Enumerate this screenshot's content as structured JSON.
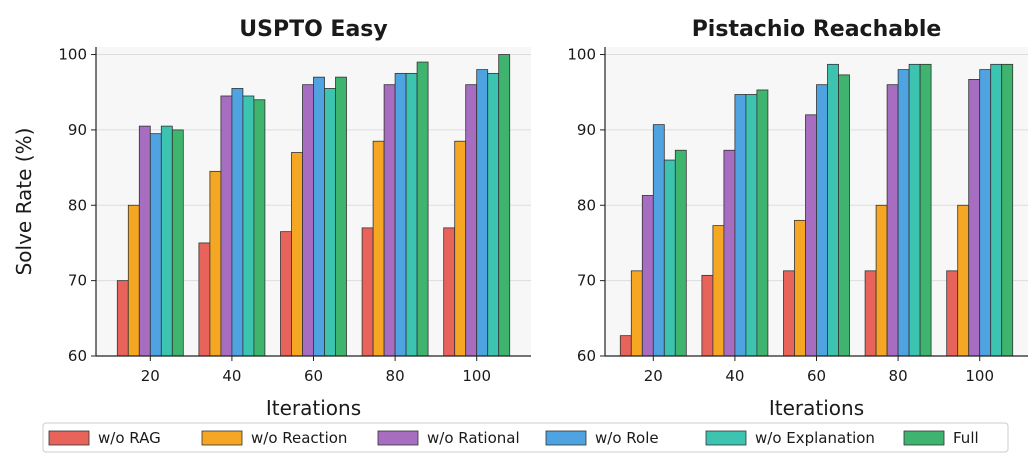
{
  "chart_data": [
    {
      "type": "bar",
      "title": "USPTO Easy",
      "xlabel": "Iterations",
      "ylabel": "Solve Rate (%)",
      "ylim": [
        60,
        101
      ],
      "yticks": [
        60,
        70,
        80,
        90,
        100
      ],
      "categories": [
        "20",
        "40",
        "60",
        "80",
        "100"
      ],
      "grid": "horizontal",
      "series": [
        {
          "name": "w/o RAG",
          "color": "#e8645a",
          "values": [
            70,
            75,
            76.5,
            77,
            77
          ]
        },
        {
          "name": "w/o Reaction",
          "color": "#f5a623",
          "values": [
            80,
            84.5,
            87,
            88.5,
            88.5
          ]
        },
        {
          "name": "w/o Rational",
          "color": "#a66dc0",
          "values": [
            90.5,
            94.5,
            96,
            96,
            96
          ]
        },
        {
          "name": "w/o Role",
          "color": "#4fa3e0",
          "values": [
            89.5,
            95.5,
            97,
            97.5,
            98
          ]
        },
        {
          "name": "w/o Explanation",
          "color": "#3cc4b0",
          "values": [
            90.5,
            94.5,
            95.5,
            97.5,
            97.5
          ]
        },
        {
          "name": "Full",
          "color": "#3fb46e",
          "values": [
            90,
            94,
            97,
            99,
            100
          ]
        }
      ]
    },
    {
      "type": "bar",
      "title": "Pistachio Reachable",
      "xlabel": "Iterations",
      "ylabel": "",
      "ylim": [
        60,
        101
      ],
      "yticks": [
        60,
        70,
        80,
        90,
        100
      ],
      "categories": [
        "20",
        "40",
        "60",
        "80",
        "100"
      ],
      "grid": "horizontal",
      "series": [
        {
          "name": "w/o RAG",
          "color": "#e8645a",
          "values": [
            62.7,
            70.7,
            71.3,
            71.3,
            71.3
          ]
        },
        {
          "name": "w/o Reaction",
          "color": "#f5a623",
          "values": [
            71.3,
            77.3,
            78,
            80,
            80
          ]
        },
        {
          "name": "w/o Rational",
          "color": "#a66dc0",
          "values": [
            81.3,
            87.3,
            92,
            96,
            96.7
          ]
        },
        {
          "name": "w/o Role",
          "color": "#4fa3e0",
          "values": [
            90.7,
            94.7,
            96,
            98,
            98
          ]
        },
        {
          "name": "w/o Explanation",
          "color": "#3cc4b0",
          "values": [
            86,
            94.7,
            98.7,
            98.7,
            98.7
          ]
        },
        {
          "name": "Full",
          "color": "#3fb46e",
          "values": [
            87.3,
            95.3,
            97.3,
            98.7,
            98.7
          ]
        }
      ]
    }
  ],
  "legend": {
    "placement": "bottom-center",
    "items": [
      "w/o RAG",
      "w/o Reaction",
      "w/o Rational",
      "w/o Role",
      "w/o Explanation",
      "Full"
    ]
  }
}
